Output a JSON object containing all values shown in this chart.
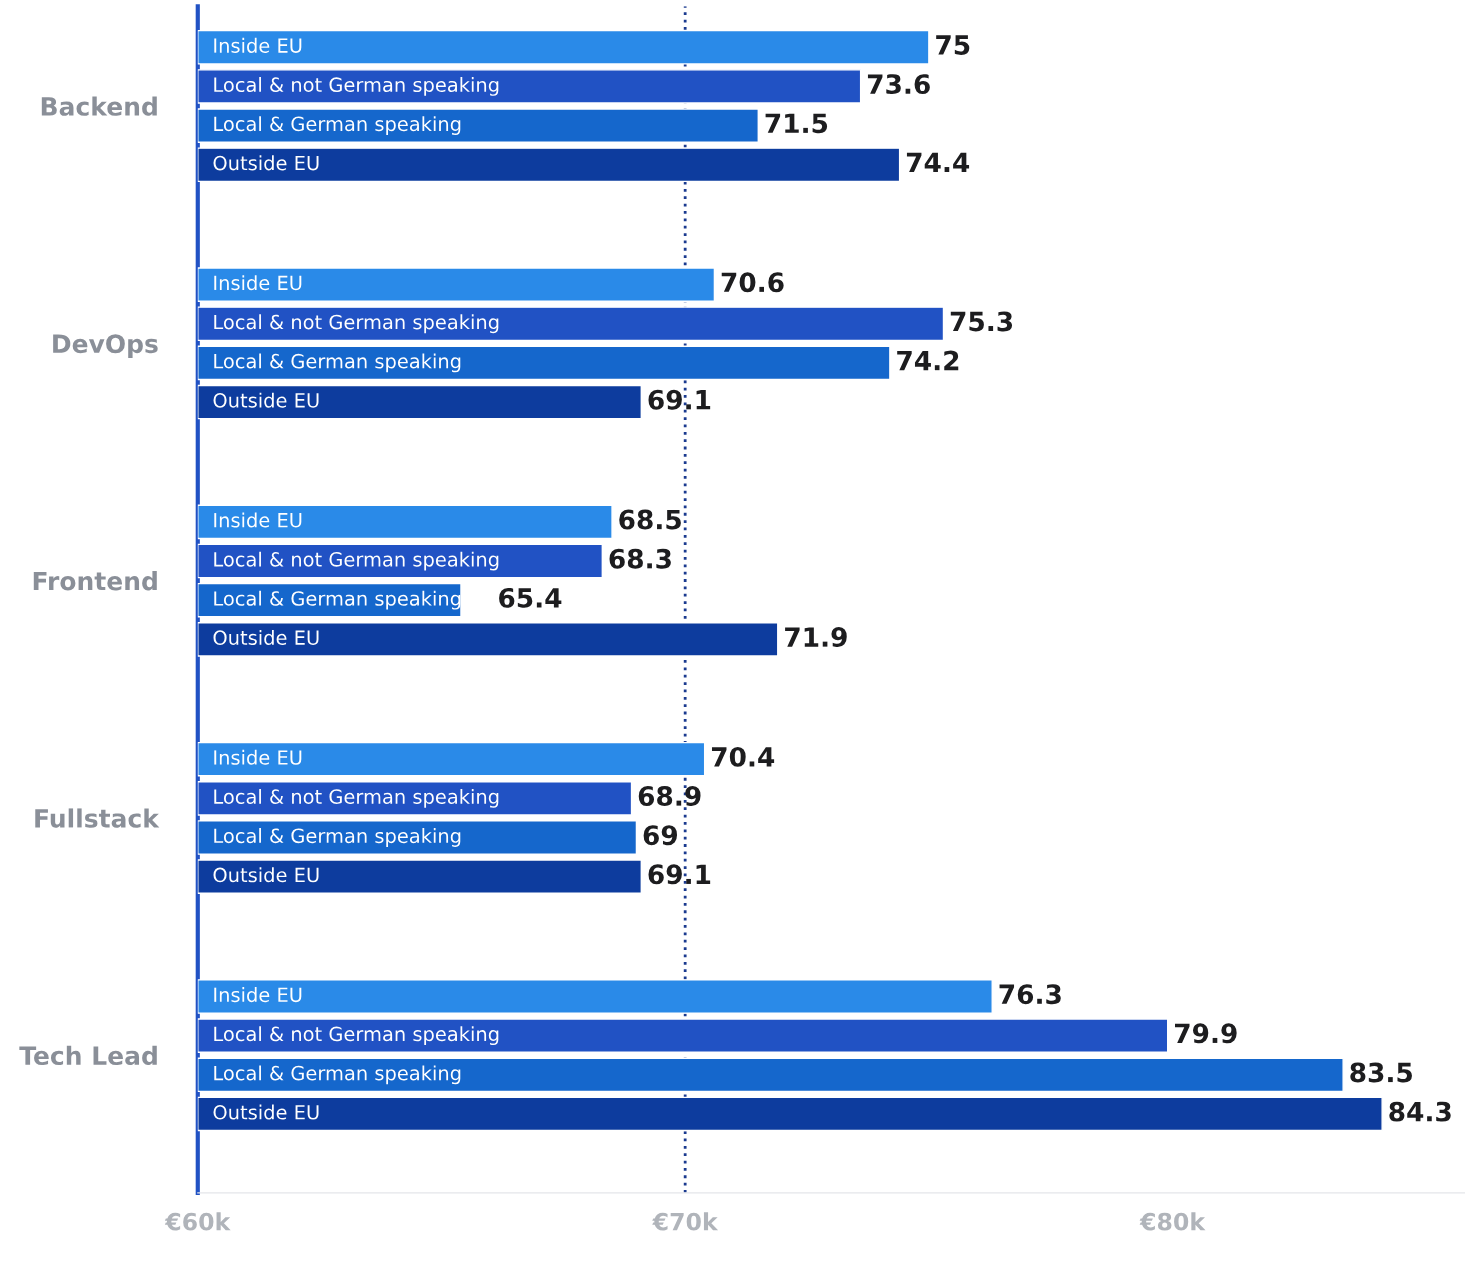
{
  "chart_data": {
    "type": "bar",
    "orientation": "horizontal",
    "categories": [
      "Backend",
      "DevOps",
      "Frontend",
      "Fullstack",
      "Tech Lead"
    ],
    "series": [
      {
        "name": "Inside EU",
        "color": "#2a8ae8",
        "values": [
          75,
          70.6,
          68.5,
          70.4,
          76.3
        ]
      },
      {
        "name": "Local & not German speaking",
        "color": "#2152c4",
        "values": [
          73.6,
          75.3,
          68.3,
          68.9,
          79.9
        ]
      },
      {
        "name": "Local & German speaking",
        "color": "#1567cc",
        "values": [
          71.5,
          74.2,
          65.4,
          69,
          83.5
        ]
      },
      {
        "name": "Outside EU",
        "color": "#0d3c9e",
        "values": [
          74.4,
          69.1,
          71.9,
          69.1,
          84.3
        ]
      }
    ],
    "xlim": [
      60,
      86
    ],
    "xticks": [
      {
        "value": 60,
        "label": "€60k"
      },
      {
        "value": 70,
        "label": "€70k"
      },
      {
        "value": 80,
        "label": "€80k"
      }
    ],
    "ref_lines": [
      {
        "axis": "x",
        "value": 70,
        "label": null,
        "color": "#1a3a8f",
        "line_style": "dotted"
      }
    ],
    "data_labels": true,
    "grid": false,
    "legend": false
  }
}
